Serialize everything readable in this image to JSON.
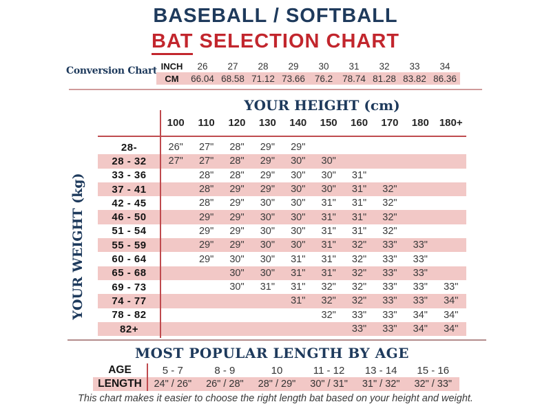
{
  "title": {
    "line1": "BASEBALL / SOFTBALL",
    "line2_highlight": "BAT",
    "line2_rest": " SELECTION CHART"
  },
  "conversion": {
    "label": "Conversion Chart",
    "inch_label": "INCH",
    "cm_label": "CM",
    "inches": [
      "26",
      "27",
      "28",
      "29",
      "30",
      "31",
      "32",
      "33",
      "34"
    ],
    "cms": [
      "66.04",
      "68.58",
      "71.12",
      "73.66",
      "76.2",
      "78.74",
      "81.28",
      "83.82",
      "86.36"
    ]
  },
  "main_chart": {
    "height_axis_label": "YOUR HEIGHT (cm)",
    "weight_axis_label": "YOUR WEIGHT (kg)",
    "height_columns": [
      "100",
      "110",
      "120",
      "130",
      "140",
      "150",
      "160",
      "170",
      "180",
      "180+"
    ],
    "rows": [
      {
        "weight": "28-",
        "values": [
          "26\"",
          "27\"",
          "28\"",
          "29\"",
          "29\"",
          "",
          "",
          "",
          "",
          ""
        ]
      },
      {
        "weight": "28 - 32",
        "values": [
          "27\"",
          "27\"",
          "28\"",
          "29\"",
          "30\"",
          "30\"",
          "",
          "",
          "",
          ""
        ]
      },
      {
        "weight": "33 - 36",
        "values": [
          "",
          "28\"",
          "28\"",
          "29\"",
          "30\"",
          "30\"",
          "31\"",
          "",
          "",
          ""
        ]
      },
      {
        "weight": "37 - 41",
        "values": [
          "",
          "28\"",
          "29\"",
          "29\"",
          "30\"",
          "30\"",
          "31\"",
          "32\"",
          "",
          ""
        ]
      },
      {
        "weight": "42 - 45",
        "values": [
          "",
          "28\"",
          "29\"",
          "30\"",
          "30\"",
          "31\"",
          "31\"",
          "32\"",
          "",
          ""
        ]
      },
      {
        "weight": "46 - 50",
        "values": [
          "",
          "29\"",
          "29\"",
          "30\"",
          "30\"",
          "31\"",
          "31\"",
          "32\"",
          "",
          ""
        ]
      },
      {
        "weight": "51 - 54",
        "values": [
          "",
          "29\"",
          "29\"",
          "30\"",
          "30\"",
          "31\"",
          "31\"",
          "32\"",
          "",
          ""
        ]
      },
      {
        "weight": "55 - 59",
        "values": [
          "",
          "29\"",
          "29\"",
          "30\"",
          "30\"",
          "31\"",
          "32\"",
          "33\"",
          "33\"",
          ""
        ]
      },
      {
        "weight": "60 - 64",
        "values": [
          "",
          "29\"",
          "30\"",
          "30\"",
          "31\"",
          "31\"",
          "32\"",
          "33\"",
          "33\"",
          ""
        ]
      },
      {
        "weight": "65 - 68",
        "values": [
          "",
          "",
          "30\"",
          "30\"",
          "31\"",
          "31\"",
          "32\"",
          "33\"",
          "33\"",
          ""
        ]
      },
      {
        "weight": "69 - 73",
        "values": [
          "",
          "",
          "30\"",
          "31\"",
          "31\"",
          "32\"",
          "32\"",
          "33\"",
          "33\"",
          "33\""
        ]
      },
      {
        "weight": "74 - 77",
        "values": [
          "",
          "",
          "",
          "",
          "31\"",
          "32\"",
          "32\"",
          "33\"",
          "33\"",
          "34\""
        ]
      },
      {
        "weight": "78 - 82",
        "values": [
          "",
          "",
          "",
          "",
          "",
          "32\"",
          "33\"",
          "33\"",
          "34\"",
          "34\""
        ]
      },
      {
        "weight": "82+",
        "values": [
          "",
          "",
          "",
          "",
          "",
          "",
          "33\"",
          "33\"",
          "34\"",
          "34\""
        ]
      }
    ]
  },
  "age_section": {
    "title": "MOST POPULAR LENGTH BY AGE",
    "age_label": "AGE",
    "length_label": "LENGTH",
    "ages": [
      "5 - 7",
      "8 - 9",
      "10",
      "11 - 12",
      "13 - 14",
      "15 - 16"
    ],
    "lengths": [
      "24\" / 26\"",
      "26\" / 28\"",
      "28\" / 29\"",
      "30\" / 31\"",
      "31\" / 32\"",
      "32\" / 33\""
    ]
  },
  "footer": "This chart makes it easier to choose the right length bat based on your height and weight.",
  "colors": {
    "navy": "#1e3a5c",
    "red": "#c2262d",
    "pink": "#f2c8c6",
    "divider_soft": "#d09a9a",
    "divider_red": "#bf4a4e",
    "text_dark": "#3a3a3a"
  },
  "chart_data": {
    "type": "table",
    "title": "BASEBALL / SOFTBALL BAT SELECTION CHART",
    "conversion_inch": [
      26,
      27,
      28,
      29,
      30,
      31,
      32,
      33,
      34
    ],
    "conversion_cm": [
      66.04,
      68.58,
      71.12,
      73.66,
      76.2,
      78.74,
      81.28,
      83.82,
      86.36
    ],
    "x_axis_label": "YOUR HEIGHT (cm)",
    "y_axis_label": "YOUR WEIGHT (kg)",
    "height_columns_cm": [
      "100",
      "110",
      "120",
      "130",
      "140",
      "150",
      "160",
      "170",
      "180",
      "180+"
    ],
    "weight_rows_kg": [
      "28-",
      "28 - 32",
      "33 - 36",
      "37 - 41",
      "42 - 45",
      "46 - 50",
      "51 - 54",
      "55 - 59",
      "60 - 64",
      "65 - 68",
      "69 - 73",
      "74 - 77",
      "78 - 82",
      "82+"
    ],
    "bat_length_inches": [
      [
        26,
        27,
        28,
        29,
        29,
        null,
        null,
        null,
        null,
        null
      ],
      [
        27,
        27,
        28,
        29,
        30,
        30,
        null,
        null,
        null,
        null
      ],
      [
        null,
        28,
        28,
        29,
        30,
        30,
        31,
        null,
        null,
        null
      ],
      [
        null,
        28,
        29,
        29,
        30,
        30,
        31,
        32,
        null,
        null
      ],
      [
        null,
        28,
        29,
        30,
        30,
        31,
        31,
        32,
        null,
        null
      ],
      [
        null,
        29,
        29,
        30,
        30,
        31,
        31,
        32,
        null,
        null
      ],
      [
        null,
        29,
        29,
        30,
        30,
        31,
        31,
        32,
        null,
        null
      ],
      [
        null,
        29,
        29,
        30,
        30,
        31,
        32,
        33,
        33,
        null
      ],
      [
        null,
        29,
        30,
        30,
        31,
        31,
        32,
        33,
        33,
        null
      ],
      [
        null,
        null,
        30,
        30,
        31,
        31,
        32,
        33,
        33,
        null
      ],
      [
        null,
        null,
        30,
        31,
        31,
        32,
        32,
        33,
        33,
        33
      ],
      [
        null,
        null,
        null,
        null,
        31,
        32,
        32,
        33,
        33,
        34
      ],
      [
        null,
        null,
        null,
        null,
        null,
        32,
        33,
        33,
        34,
        34
      ],
      [
        null,
        null,
        null,
        null,
        null,
        null,
        33,
        33,
        34,
        34
      ]
    ],
    "popular_length_by_age": {
      "ages": [
        "5 - 7",
        "8 - 9",
        "10",
        "11 - 12",
        "13 - 14",
        "15 - 16"
      ],
      "lengths": [
        "24\" / 26\"",
        "26\" / 28\"",
        "28\" / 29\"",
        "30\" / 31\"",
        "31\" / 32\"",
        "32\" / 33\""
      ]
    }
  }
}
